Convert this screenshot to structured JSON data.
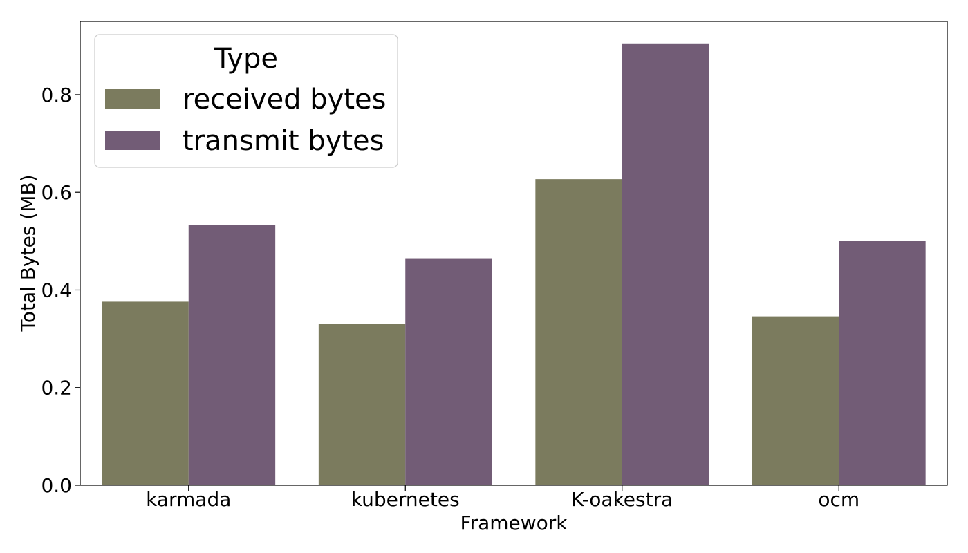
{
  "chart_data": {
    "type": "bar",
    "title": "",
    "xlabel": "Framework",
    "ylabel": "Total Bytes (MB)",
    "categories": [
      "karmada",
      "kubernetes",
      "K-oakestra",
      "ocm"
    ],
    "series": [
      {
        "name": "received bytes",
        "color": "#7b7b5e",
        "values": [
          0.376,
          0.33,
          0.627,
          0.346
        ]
      },
      {
        "name": "transmit bytes",
        "color": "#725c76",
        "values": [
          0.533,
          0.465,
          0.905,
          0.5
        ]
      }
    ],
    "ylim": [
      0,
      0.95
    ],
    "yticks": [
      0.0,
      0.2,
      0.4,
      0.6,
      0.8
    ],
    "ytick_labels": [
      "0.0",
      "0.2",
      "0.4",
      "0.6",
      "0.8"
    ],
    "grid": false,
    "legend": {
      "title": "Type",
      "placement": "top-left"
    }
  }
}
